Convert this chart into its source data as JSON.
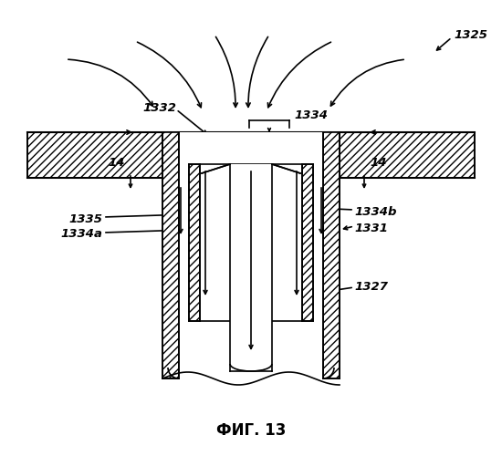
{
  "title": "ФИГ. 13",
  "label_1325": "1325",
  "label_1334": "1334",
  "label_1332": "1332",
  "label_14_left": "14",
  "label_14_right": "14",
  "label_1335": "1335",
  "label_1334a": "1334a",
  "label_1334b": "1334b",
  "label_1331": "1331",
  "label_1327": "1327",
  "bg_color": "#ffffff",
  "line_color": "#000000",
  "figsize": [
    5.5,
    5.0
  ],
  "dpi": 100
}
